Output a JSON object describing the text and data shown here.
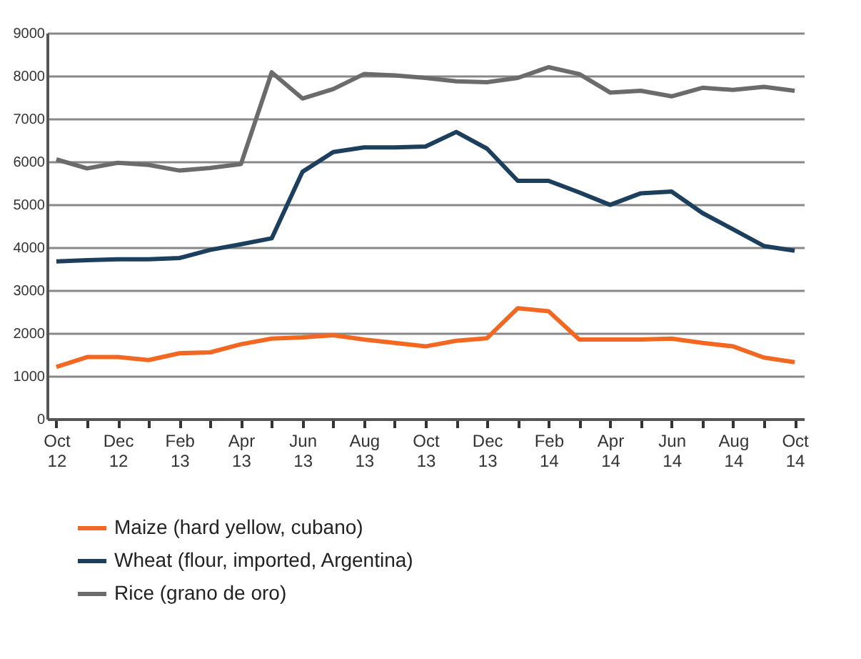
{
  "chart_data": {
    "type": "line",
    "categories": [
      "Oct 12",
      null,
      "Dec 12",
      null,
      "Feb 13",
      null,
      "Apr 13",
      null,
      "Jun 13",
      null,
      "Aug 13",
      null,
      "Oct 13",
      null,
      "Dec 13",
      null,
      "Feb 14",
      null,
      "Apr 14",
      null,
      "Jun 14",
      null,
      "Aug 14",
      null,
      "Oct 14"
    ],
    "series": [
      {
        "name": "Maize (hard yellow, cubano)",
        "color": "#f26722",
        "values": [
          1210,
          1440,
          1440,
          1370,
          1530,
          1550,
          1740,
          1870,
          1900,
          1950,
          1850,
          1770,
          1690,
          1820,
          1880,
          2580,
          2510,
          1850,
          1850,
          1850,
          1870,
          1770,
          1690,
          1430,
          1320
        ]
      },
      {
        "name": "Wheat (flour, imported, Argentina)",
        "color": "#1d3f5e",
        "values": [
          3670,
          3700,
          3720,
          3720,
          3750,
          3940,
          4070,
          4210,
          5760,
          6220,
          6330,
          6330,
          6350,
          6690,
          6300,
          5550,
          5550,
          5280,
          4990,
          5260,
          5300,
          4800,
          4420,
          4030,
          3920
        ]
      },
      {
        "name": "Rice (grano de oro)",
        "color": "#6b6b6b",
        "values": [
          6050,
          5840,
          5970,
          5920,
          5790,
          5850,
          5940,
          8080,
          7470,
          7690,
          8040,
          8010,
          7950,
          7870,
          7850,
          7950,
          8200,
          8040,
          7610,
          7650,
          7520,
          7720,
          7670,
          7740,
          7650
        ]
      }
    ],
    "ylim": [
      0,
      9000
    ],
    "yticks": [
      0,
      1000,
      2000,
      3000,
      4000,
      5000,
      6000,
      7000,
      8000,
      9000
    ],
    "grid": "y",
    "legend": "bottom left",
    "marker": "none",
    "line_style": "solid"
  }
}
